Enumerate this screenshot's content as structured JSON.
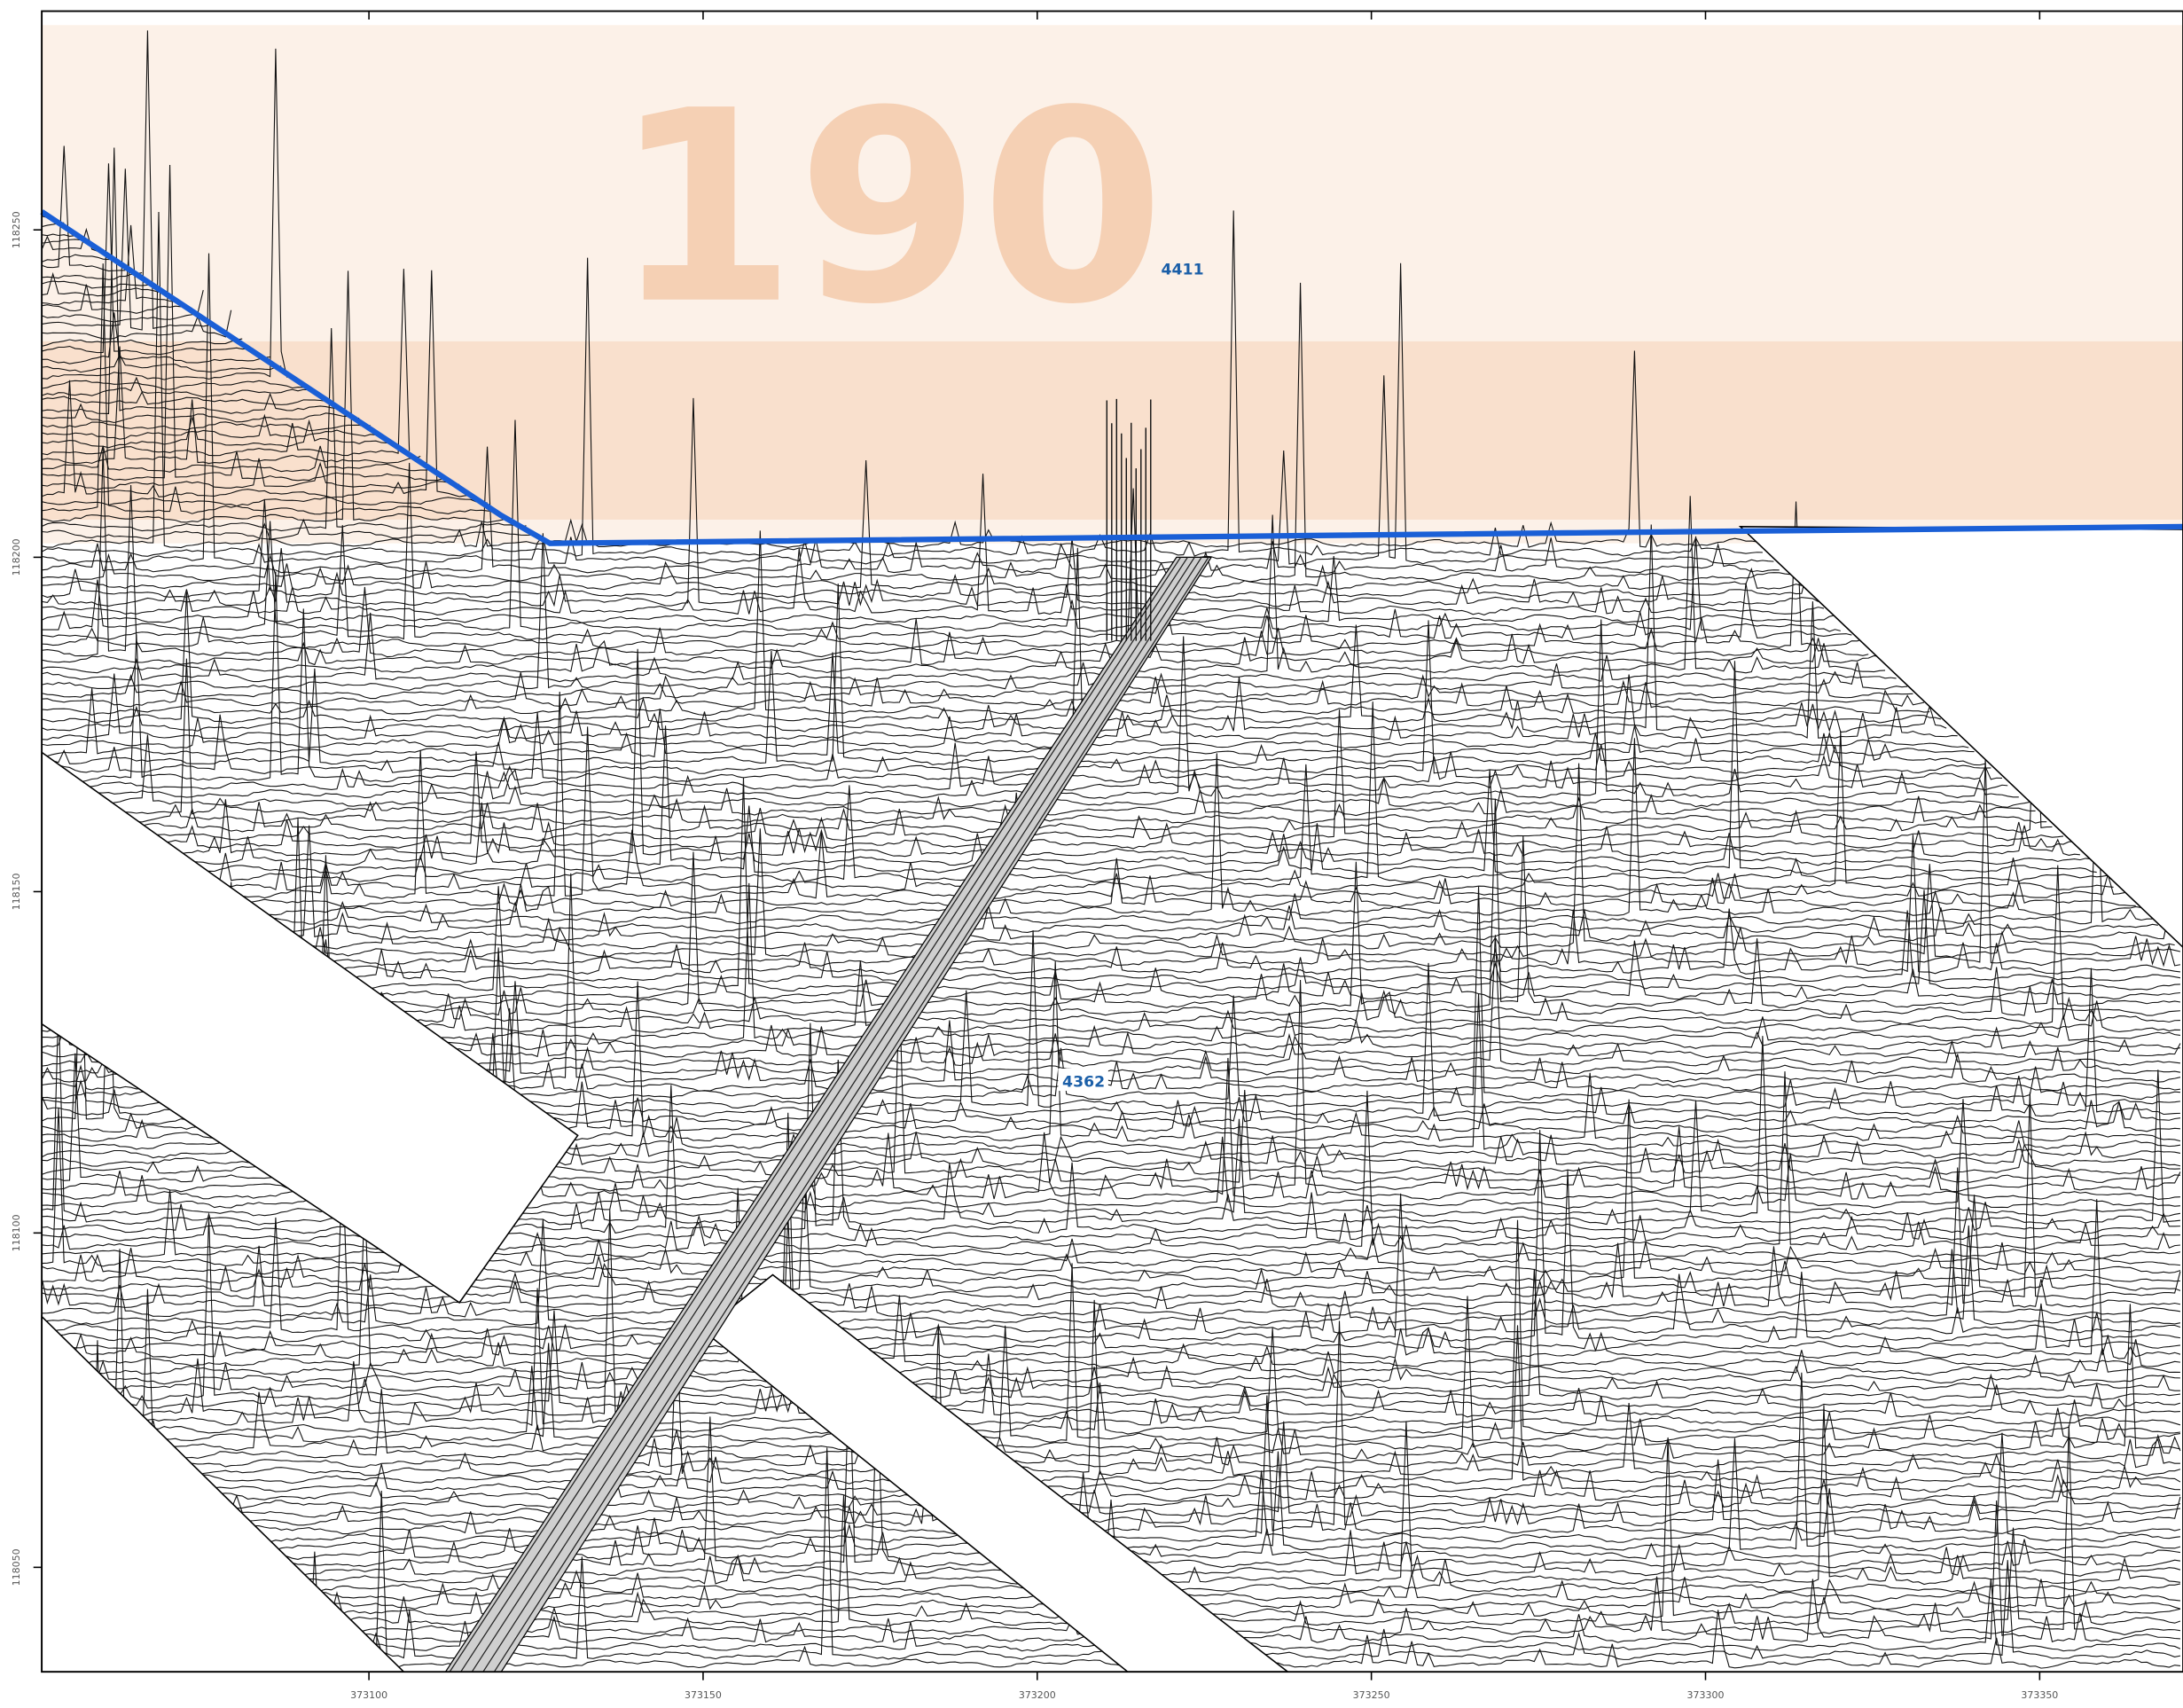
{
  "map": {
    "watermark": "190",
    "line_labels": [
      "4411",
      "4362"
    ],
    "x_axis": {
      "ticks": [
        "373100",
        "373150",
        "373200",
        "373250",
        "373300",
        "373350"
      ]
    },
    "y_axis": {
      "ticks": [
        "118250",
        "118200",
        "118150",
        "118100",
        "118050"
      ]
    }
  }
}
